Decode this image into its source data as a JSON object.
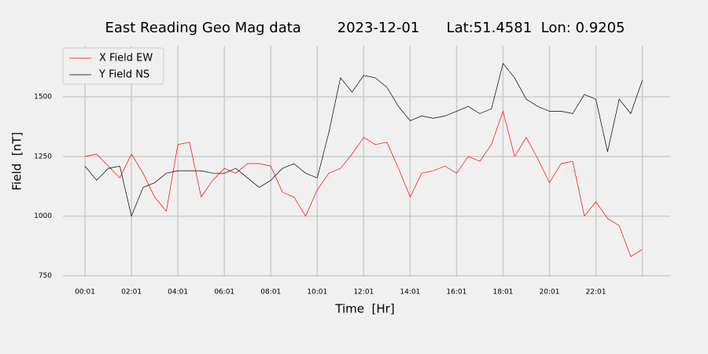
{
  "chart_data": {
    "type": "line",
    "title": "East Reading Geo Mag data        2023-12-01      Lat:51.4581  Lon: 0.9205",
    "xlabel": "Time  [Hr]",
    "ylabel": "Field  [nT]",
    "x": [
      0,
      0.5,
      1,
      1.5,
      2,
      2.5,
      3,
      3.5,
      4,
      4.5,
      5,
      5.5,
      6,
      6.5,
      7,
      7.5,
      8,
      8.5,
      9,
      9.5,
      10,
      10.5,
      11,
      11.5,
      12,
      12.5,
      13,
      13.5,
      14,
      14.5,
      15,
      15.5,
      16,
      16.5,
      17,
      17.5,
      18,
      18.5,
      19,
      19.5,
      20,
      20.5,
      21,
      21.5,
      22,
      22.5,
      23,
      23.5,
      24
    ],
    "series": [
      {
        "name": "X Field EW",
        "color": "#ff0000",
        "values": [
          1250,
          1260,
          1210,
          1160,
          1260,
          1180,
          1080,
          1020,
          1300,
          1310,
          1080,
          1150,
          1200,
          1180,
          1220,
          1220,
          1210,
          1100,
          1080,
          1000,
          1110,
          1180,
          1200,
          1260,
          1330,
          1300,
          1310,
          1200,
          1080,
          1180,
          1190,
          1210,
          1180,
          1250,
          1230,
          1300,
          1440,
          1250,
          1330,
          1240,
          1140,
          1220,
          1230,
          1000,
          1060,
          990,
          960,
          830,
          860
        ]
      },
      {
        "name": "Y Field NS",
        "color": "#000000",
        "values": [
          1210,
          1150,
          1200,
          1210,
          1000,
          1120,
          1140,
          1180,
          1190,
          1190,
          1190,
          1180,
          1180,
          1200,
          1160,
          1120,
          1150,
          1200,
          1220,
          1180,
          1160,
          1350,
          1580,
          1520,
          1590,
          1580,
          1540,
          1460,
          1400,
          1420,
          1410,
          1420,
          1440,
          1460,
          1430,
          1450,
          1640,
          1580,
          1490,
          1460,
          1440,
          1440,
          1430,
          1510,
          1490,
          1270,
          1490,
          1430,
          1570
        ]
      }
    ],
    "xlim": [
      -0.95,
      25.2
    ],
    "xticks": [
      {
        "value": 0,
        "label": "00:01"
      },
      {
        "value": 2,
        "label": "02:01"
      },
      {
        "value": 4,
        "label": "04:01"
      },
      {
        "value": 6,
        "label": "06:01"
      },
      {
        "value": 8,
        "label": "08:01"
      },
      {
        "value": 10,
        "label": "10:01"
      },
      {
        "value": 12,
        "label": "12:01"
      },
      {
        "value": 14,
        "label": "14:01"
      },
      {
        "value": 16,
        "label": "16:01"
      },
      {
        "value": 18,
        "label": "18:01"
      },
      {
        "value": 20,
        "label": "20:01"
      },
      {
        "value": 22,
        "label": "22:01"
      },
      {
        "value": 24,
        "label": null
      }
    ],
    "ylim": [
      745,
      1715
    ],
    "yticks": [
      750,
      1000,
      1250,
      1500
    ],
    "grid": true,
    "legend": "upper left"
  }
}
